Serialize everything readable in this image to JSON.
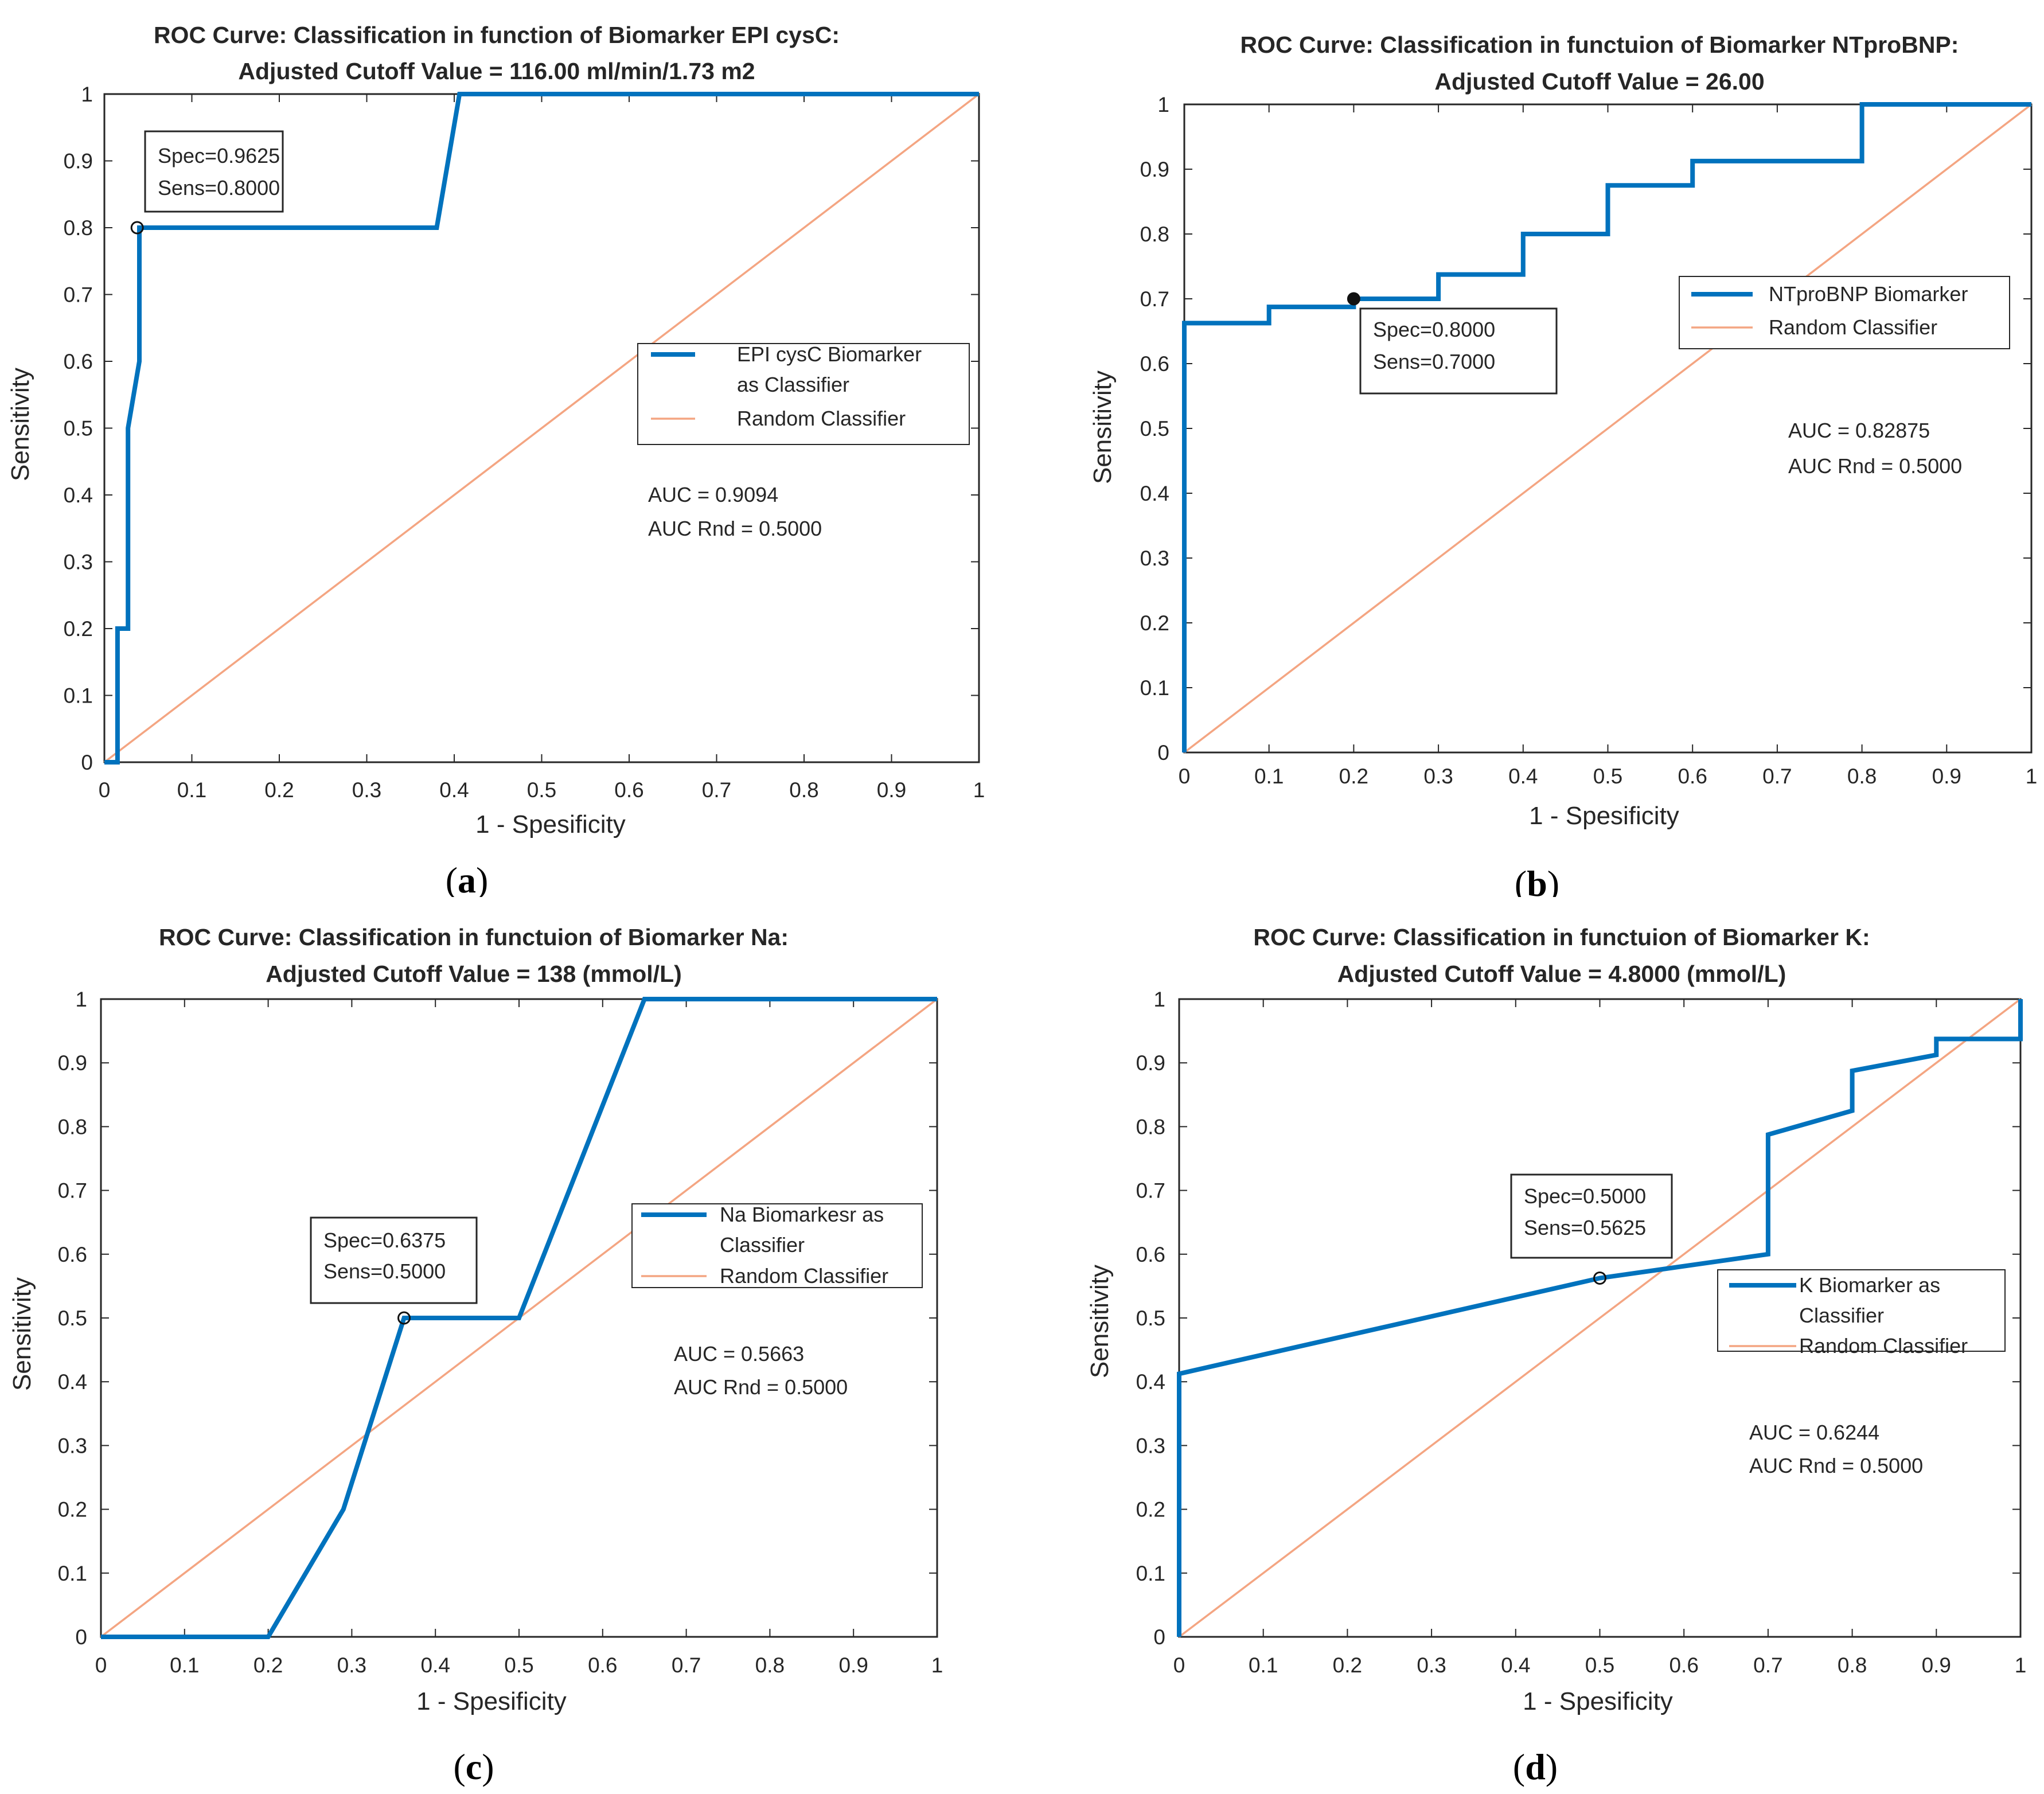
{
  "chart_data": [
    {
      "type": "line",
      "panel_label": "a",
      "title_line1": "ROC Curve: Classification in function of Biomarker EPI cysC:",
      "title_line2": "Adjusted Cutoff Value = 116.00 ml/min/1.73 m2",
      "xlabel": "1 - Spesificity",
      "ylabel": "Sensitivity",
      "xlim": [
        0,
        1
      ],
      "ylim": [
        0,
        1
      ],
      "xticks": [
        "0",
        "0.1",
        "0.2",
        "0.3",
        "0.4",
        "0.5",
        "0.6",
        "0.7",
        "0.8",
        "0.9",
        "1"
      ],
      "yticks": [
        "0",
        "0.1",
        "0.2",
        "0.3",
        "0.4",
        "0.5",
        "0.6",
        "0.7",
        "0.8",
        "0.9",
        "1"
      ],
      "series": [
        {
          "name": "EPI cysC Biomarker as Classifier",
          "color": "#0072BD",
          "x": [
            0.0,
            0.015,
            0.015,
            0.027,
            0.027,
            0.04,
            0.04,
            0.05,
            0.05,
            0.38,
            0.406,
            1.0
          ],
          "y": [
            0.0,
            0.0,
            0.2,
            0.2,
            0.5,
            0.6,
            0.8,
            0.8,
            0.8,
            0.8,
            1.0,
            1.0
          ]
        },
        {
          "name": "Random Classifier",
          "color": "#F4A582",
          "x": [
            0,
            1
          ],
          "y": [
            0,
            1
          ]
        }
      ],
      "legend": {
        "entries": [
          "EPI cysC Biomarker",
          "as Classifier",
          "Random Classifier"
        ],
        "placement": "center-right"
      },
      "cutoff_point": {
        "x": 0.0375,
        "y": 0.8,
        "marker": "open-circle",
        "note": [
          "Spec=0.9625",
          "Sens=0.8000"
        ]
      },
      "auc": {
        "line1": "AUC        = 0.9094",
        "line2": "AUC Rnd = 0.5000"
      }
    },
    {
      "type": "line",
      "panel_label": "b",
      "title_line1": "ROC Curve: Classification in functuion of Biomarker NTproBNP:",
      "title_line2": "Adjusted Cutoff Value = 26.00",
      "xlabel": "1 - Spesificity",
      "ylabel": "Sensitivity",
      "xlim": [
        0,
        1
      ],
      "ylim": [
        0,
        1
      ],
      "xticks": [
        "0",
        "0.1",
        "0.2",
        "0.3",
        "0.4",
        "0.5",
        "0.6",
        "0.7",
        "0.8",
        "0.9",
        "1"
      ],
      "yticks": [
        "0",
        "0.1",
        "0.2",
        "0.3",
        "0.4",
        "0.5",
        "0.6",
        "0.7",
        "0.8",
        "0.9",
        "1"
      ],
      "series": [
        {
          "name": "NTproBNP Biomarker",
          "color": "#0072BD",
          "x": [
            0.0,
            0.0,
            0.1,
            0.1,
            0.2,
            0.2,
            0.3,
            0.3,
            0.4,
            0.4,
            0.5,
            0.5,
            0.6,
            0.6,
            0.8,
            0.8,
            1.0
          ],
          "y": [
            0.0,
            0.6625,
            0.6625,
            0.6875,
            0.6875,
            0.7,
            0.7,
            0.7375,
            0.7375,
            0.8,
            0.8,
            0.875,
            0.875,
            0.9125,
            0.9125,
            1.0,
            1.0
          ]
        },
        {
          "name": "Random Classifier",
          "color": "#F4A582",
          "x": [
            0,
            1
          ],
          "y": [
            0,
            1
          ]
        }
      ],
      "legend": {
        "entries": [
          "NTproBNP Biomarker",
          "Random Classifier"
        ],
        "placement": "center-right"
      },
      "cutoff_point": {
        "x": 0.2,
        "y": 0.7,
        "marker": "filled-circle",
        "note": [
          "Spec=0.8000",
          "Sens=0.7000"
        ]
      },
      "auc": {
        "line1": "AUC       = 0.82875",
        "line2": "AUC Rnd = 0.5000"
      }
    },
    {
      "type": "line",
      "panel_label": "c",
      "title_line1": "ROC Curve: Classification in functuion of Biomarker Na:",
      "title_line2": "Adjusted Cutoff Value = 138 (mmol/L)",
      "xlabel": "1 - Spesificity",
      "ylabel": "Sensitivity",
      "xlim": [
        0,
        1
      ],
      "ylim": [
        0,
        1
      ],
      "xticks": [
        "0",
        "0.1",
        "0.2",
        "0.3",
        "0.4",
        "0.5",
        "0.6",
        "0.7",
        "0.8",
        "0.9",
        "1"
      ],
      "yticks": [
        "0",
        "0.1",
        "0.2",
        "0.3",
        "0.4",
        "0.5",
        "0.6",
        "0.7",
        "0.8",
        "0.9",
        "1"
      ],
      "series": [
        {
          "name": "Na Biomarkesr as Classifier",
          "color": "#0072BD",
          "x": [
            0.0,
            0.2,
            0.29,
            0.3625,
            0.5,
            0.65,
            1.0
          ],
          "y": [
            0.0,
            0.0,
            0.2,
            0.5,
            0.5,
            1.0,
            1.0
          ]
        },
        {
          "name": "Random Classifier",
          "color": "#F4A582",
          "x": [
            0,
            1
          ],
          "y": [
            0,
            1
          ]
        }
      ],
      "legend": {
        "entries": [
          "Na Biomarkesr as",
          "Classifier",
          "Random Classifier"
        ],
        "placement": "center-right"
      },
      "cutoff_point": {
        "x": 0.3625,
        "y": 0.5,
        "marker": "open-circle",
        "note": [
          "Spec=0.6375",
          "Sens=0.5000"
        ]
      },
      "auc": {
        "line1": "AUC       = 0.5663",
        "line2": "AUC Rnd = 0.5000"
      }
    },
    {
      "type": "line",
      "panel_label": "d",
      "title_line1": "ROC Curve: Classification in functuion of Biomarker K:",
      "title_line2": "Adjusted Cutoff Value = 4.8000 (mmol/L)",
      "xlabel": "1 - Spesificity",
      "ylabel": "Sensitivity",
      "xlim": [
        0,
        1
      ],
      "ylim": [
        0,
        1
      ],
      "xticks": [
        "0",
        "0.1",
        "0.2",
        "0.3",
        "0.4",
        "0.5",
        "0.6",
        "0.7",
        "0.8",
        "0.9",
        "1"
      ],
      "yticks": [
        "0",
        "0.1",
        "0.2",
        "0.3",
        "0.4",
        "0.5",
        "0.6",
        "0.7",
        "0.8",
        "0.9",
        "1"
      ],
      "series": [
        {
          "name": "K Biomarker as Classifier",
          "color": "#0072BD",
          "x": [
            0.0,
            0.0,
            0.5,
            0.7,
            0.7,
            0.8,
            0.8,
            0.9,
            0.9,
            1.0,
            1.0
          ],
          "y": [
            0.0,
            0.4125,
            0.5625,
            0.6,
            0.7875,
            0.825,
            0.8875,
            0.9125,
            0.9375,
            0.9375,
            1.0
          ]
        },
        {
          "name": "Random Classifier",
          "color": "#F4A582",
          "x": [
            0,
            1
          ],
          "y": [
            0,
            1
          ]
        }
      ],
      "legend": {
        "entries": [
          "K Biomarker as",
          "Classifier",
          "Random Classifier"
        ],
        "placement": "center-right"
      },
      "cutoff_point": {
        "x": 0.5,
        "y": 0.5625,
        "marker": "open-circle",
        "note": [
          "Spec=0.5000",
          "Sens=0.5625"
        ]
      },
      "auc": {
        "line1": "AUC       = 0.6244",
        "line2": "AUC Rnd = 0.5000"
      }
    }
  ]
}
